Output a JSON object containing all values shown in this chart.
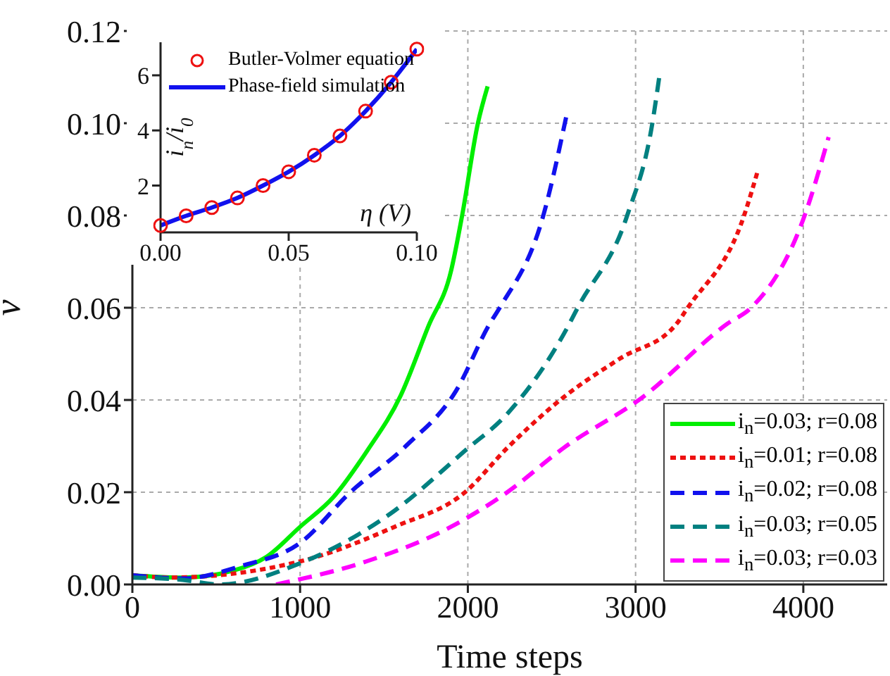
{
  "chart_data": [
    {
      "type": "line",
      "xlabel": "Time steps",
      "ylabel": "v",
      "xlim": [
        0,
        4500
      ],
      "xticks": [
        0,
        1000,
        2000,
        3000,
        4000
      ],
      "ylim": [
        0,
        0.12
      ],
      "yticks": [
        {
          "value": 0,
          "label": "0.00"
        },
        {
          "value": 0.02,
          "label": "0.02"
        },
        {
          "value": 0.04,
          "label": "0.04"
        },
        {
          "value": 0.06,
          "label": "0.06"
        },
        {
          "value": 0.08,
          "label": "0.08"
        },
        {
          "value": 0.1,
          "label": "0.10"
        },
        {
          "value": 0.12,
          "label": "0.12"
        }
      ],
      "grid": true,
      "legend": "bottom right",
      "marker": "none",
      "series": [
        {
          "name": "i$_{n}$=0.03; r=0.08",
          "color": "#00ee00",
          "line_style": "solid",
          "x": [
            0,
            300,
            600,
            800,
            1000,
            1200,
            1400,
            1600,
            1765,
            1900,
            1966,
            2060,
            2118
          ],
          "values": [
            0.002,
            0.0015,
            0.003,
            0.006,
            0.0125,
            0.019,
            0.029,
            0.041,
            0.056,
            0.068,
            0.08,
            0.1,
            0.108
          ]
        },
        {
          "name": "i$_{n}$=0.01; r=0.08",
          "color": "#ee1111",
          "line_style": "dotted",
          "x": [
            0,
            218,
            1000,
            1563,
            1983,
            2235,
            2571,
            2908,
            3244,
            3311,
            3647,
            3731
          ],
          "values": [
            0.002,
            0.0015,
            0.005,
            0.0125,
            0.02,
            0.0296,
            0.0406,
            0.049,
            0.0565,
            0.06,
            0.08,
            0.09
          ]
        },
        {
          "name": "i$_{n}$=0.02; r=0.08",
          "color": "#1111ee",
          "line_style": "dashed",
          "x": [
            0,
            300,
            650,
            1000,
            1300,
            1630,
            1930,
            2130,
            2190,
            2450,
            2590
          ],
          "values": [
            0.002,
            0.0013,
            0.004,
            0.009,
            0.02,
            0.03,
            0.042,
            0.0565,
            0.06,
            0.08,
            0.102
          ]
        },
        {
          "name": "i$_{n}$=0.03; r=0.05",
          "color": "#008080",
          "line_style": "dashed",
          "x": [
            0,
            300,
            520,
            1000,
            1563,
            1983,
            2235,
            2605,
            2655,
            2950,
            3100,
            3143
          ],
          "values": [
            0.0015,
            0.001,
            0,
            0.0046,
            0.016,
            0.029,
            0.037,
            0.0565,
            0.06,
            0.08,
            0.1,
            0.1105
          ]
        },
        {
          "name": "i$_{n}$=0.03; r=0.03",
          "color": "#ff00ff",
          "line_style": "dashed",
          "x": [
            857,
            1395,
            1899,
            2235,
            2571,
            3042,
            3546,
            3689,
            4008,
            4151
          ],
          "values": [
            0,
            0.005,
            0.0125,
            0.02,
            0.0296,
            0.0406,
            0.0565,
            0.06,
            0.08,
            0.097
          ]
        }
      ]
    },
    {
      "type": "line",
      "xlabel": "η (V)",
      "ylabel": "i$_{n}$/i$_{0}$",
      "xlim": [
        0,
        0.1
      ],
      "xticks": [
        {
          "value": 0,
          "label": "0.00"
        },
        {
          "value": 0.05,
          "label": "0.05"
        },
        {
          "value": 0.1,
          "label": "0.10"
        }
      ],
      "ylim": [
        0.3,
        7.2
      ],
      "yticks": [
        2,
        4,
        6
      ],
      "grid": false,
      "legend": "top left",
      "marker": "none",
      "series": [
        {
          "name": "Butler-Volmer equation",
          "type": "scatter",
          "marker": "circle",
          "color": "#ee1111",
          "x": [
            0,
            0.01,
            0.02,
            0.03,
            0.04,
            0.05,
            0.06,
            0.07,
            0.08,
            0.09,
            0.1
          ],
          "values": [
            0.55,
            0.9,
            1.2,
            1.55,
            2.0,
            2.5,
            3.1,
            3.8,
            4.7,
            5.75,
            6.95
          ]
        },
        {
          "name": "Phase-field simulation",
          "line_style": "solid",
          "color": "#1111ee",
          "x": [
            0,
            0.01,
            0.02,
            0.03,
            0.04,
            0.05,
            0.06,
            0.07,
            0.08,
            0.09,
            0.1
          ],
          "values": [
            0.55,
            0.9,
            1.2,
            1.55,
            2.0,
            2.5,
            3.1,
            3.8,
            4.7,
            5.75,
            6.95
          ]
        }
      ]
    }
  ]
}
